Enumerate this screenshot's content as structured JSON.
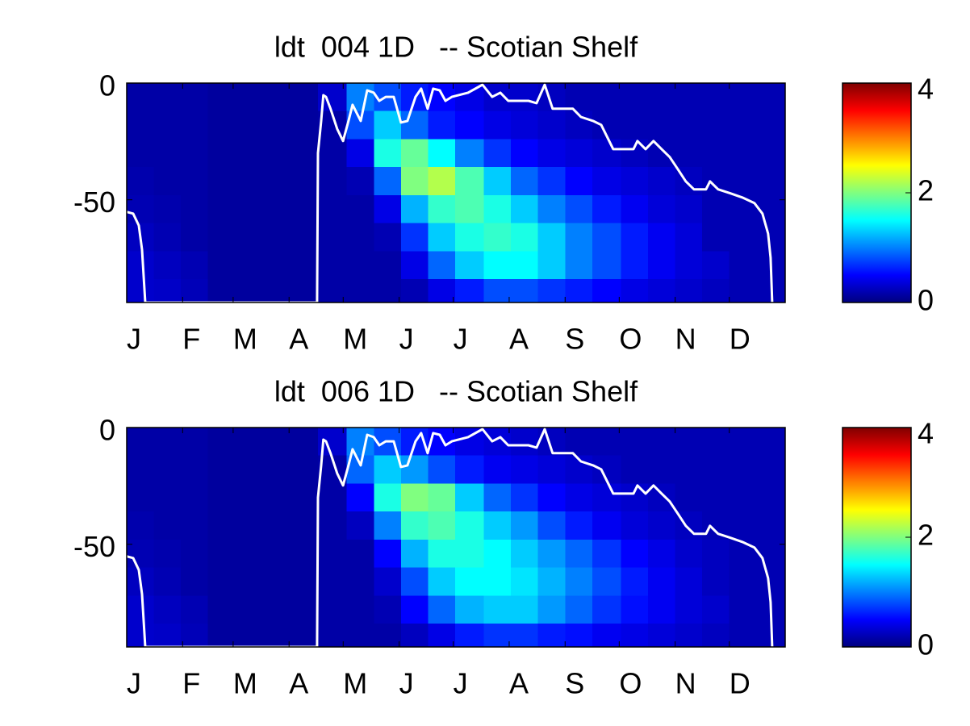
{
  "chart_data": [
    {
      "type": "heatmap",
      "title": "ldt  004 1D   -- Scotian Shelf",
      "colormap": "jet",
      "xlim": [
        0,
        365
      ],
      "ylim": [
        -94,
        0
      ],
      "zlim": [
        0,
        4
      ],
      "zticks": [
        0,
        2,
        4
      ],
      "yticks": [
        0,
        -50
      ],
      "xticks": [
        {
          "value": 0,
          "label": "J"
        },
        {
          "value": 31,
          "label": "F"
        },
        {
          "value": 59,
          "label": "M"
        },
        {
          "value": 90,
          "label": "A"
        },
        {
          "value": 120,
          "label": "M"
        },
        {
          "value": 151,
          "label": "J"
        },
        {
          "value": 181,
          "label": "J"
        },
        {
          "value": 212,
          "label": "A"
        },
        {
          "value": 243,
          "label": "S"
        },
        {
          "value": 273,
          "label": "O"
        },
        {
          "value": 304,
          "label": "N"
        },
        {
          "value": 334,
          "label": "D"
        }
      ],
      "x_edges": [
        0,
        15,
        30,
        45,
        61,
        76,
        91,
        106,
        122,
        137,
        152,
        167,
        182,
        198,
        213,
        228,
        243,
        258,
        274,
        289,
        304,
        319,
        334,
        350,
        365
      ],
      "y_edges": [
        0,
        -12,
        -24,
        -36,
        -48,
        -60,
        -72,
        -84,
        -94
      ],
      "z": [
        [
          0.15,
          0.15,
          0.15,
          0.12,
          0.12,
          0.12,
          0.12,
          0.3,
          1.0,
          0.8,
          0.6,
          0.5,
          0.4,
          0.3,
          0.3,
          0.25,
          0.2,
          0.2,
          0.2,
          0.2,
          0.2,
          0.2,
          0.2,
          0.2
        ],
        [
          0.15,
          0.15,
          0.15,
          0.12,
          0.12,
          0.12,
          0.12,
          0.15,
          0.8,
          1.3,
          0.9,
          0.6,
          0.5,
          0.4,
          0.35,
          0.3,
          0.25,
          0.2,
          0.2,
          0.2,
          0.2,
          0.2,
          0.2,
          0.2
        ],
        [
          0.15,
          0.15,
          0.15,
          0.12,
          0.12,
          0.12,
          0.12,
          0.15,
          0.4,
          1.6,
          1.9,
          1.5,
          1.0,
          0.7,
          0.5,
          0.4,
          0.35,
          0.3,
          0.25,
          0.2,
          0.2,
          0.2,
          0.2,
          0.2
        ],
        [
          0.18,
          0.15,
          0.15,
          0.12,
          0.12,
          0.12,
          0.12,
          0.15,
          0.2,
          0.9,
          2.0,
          2.2,
          1.8,
          1.3,
          0.9,
          0.7,
          0.5,
          0.4,
          0.35,
          0.3,
          0.25,
          0.2,
          0.2,
          0.2
        ],
        [
          0.2,
          0.18,
          0.15,
          0.12,
          0.12,
          0.12,
          0.12,
          0.15,
          0.15,
          0.4,
          1.2,
          1.7,
          1.8,
          1.6,
          1.3,
          1.0,
          0.8,
          0.6,
          0.45,
          0.35,
          0.3,
          0.2,
          0.2,
          0.2
        ],
        [
          0.25,
          0.2,
          0.15,
          0.12,
          0.12,
          0.12,
          0.12,
          0.15,
          0.15,
          0.2,
          0.7,
          1.3,
          1.6,
          1.7,
          1.6,
          1.3,
          1.0,
          0.8,
          0.6,
          0.45,
          0.35,
          0.2,
          0.2,
          0.2
        ],
        [
          0.3,
          0.25,
          0.2,
          0.12,
          0.12,
          0.12,
          0.12,
          0.15,
          0.15,
          0.15,
          0.4,
          0.9,
          1.3,
          1.5,
          1.5,
          1.3,
          1.0,
          0.8,
          0.6,
          0.45,
          0.35,
          0.3,
          0.2,
          0.2
        ],
        [
          0.3,
          0.28,
          0.22,
          0.12,
          0.12,
          0.12,
          0.12,
          0.15,
          0.15,
          0.15,
          0.2,
          0.4,
          0.6,
          0.8,
          0.8,
          0.7,
          0.6,
          0.5,
          0.4,
          0.35,
          0.3,
          0.25,
          0.2,
          0.2
        ]
      ],
      "series": [
        {
          "color": "#ffffff",
          "x": [
            0,
            3.6,
            6.7,
            8.5,
            10.3,
            105.5,
            106,
            107.8,
            109,
            110.5,
            113,
            116.7,
            119.9,
            123,
            125.2,
            129.7,
            133.3,
            136.9,
            140,
            143.6,
            148,
            152,
            155.6,
            160.1,
            163.2,
            166.8,
            169.9,
            173.5,
            176.7,
            180.2,
            189.2,
            197.2,
            202.6,
            207.1,
            211.5,
            222.7,
            227.2,
            231.7,
            236.1,
            247.3,
            251.8,
            258.5,
            263,
            269.7,
            280.9,
            283.1,
            287.6,
            292,
            296.5,
            301,
            305.5,
            309.9,
            314.4,
            321.1,
            323.3,
            327.8,
            334.5,
            341.2,
            347.9,
            352.4,
            355.5,
            356.9,
            357.8
          ],
          "values": [
            -55.2,
            -55.9,
            -61,
            -71.4,
            -94,
            -94,
            -30,
            -16.2,
            -5.2,
            -5.9,
            -11,
            -19.7,
            -24.8,
            -16,
            -9.3,
            -16.2,
            -3.1,
            -4.1,
            -7.6,
            -5.9,
            -5.9,
            -16.9,
            -16.2,
            -5.9,
            -2.4,
            -11,
            -2.4,
            -3.1,
            -7.6,
            -5.9,
            -4.1,
            -0.7,
            -5.9,
            -4.1,
            -7.6,
            -7.6,
            -8.6,
            -0.7,
            -11,
            -11,
            -14.5,
            -16.2,
            -17.9,
            -28.3,
            -28.3,
            -24.8,
            -28.3,
            -24.8,
            -28.3,
            -31.7,
            -36.9,
            -42.1,
            -45.5,
            -45.5,
            -42.1,
            -45.5,
            -47.2,
            -49,
            -51.4,
            -55.9,
            -64.5,
            -74.8,
            -94
          ]
        }
      ]
    },
    {
      "type": "heatmap",
      "title": "ldt  006 1D   -- Scotian Shelf",
      "colormap": "jet",
      "xlim": [
        0,
        365
      ],
      "ylim": [
        -94,
        0
      ],
      "zlim": [
        0,
        4
      ],
      "zticks": [
        0,
        2,
        4
      ],
      "yticks": [
        0,
        -50
      ],
      "xticks": [
        {
          "value": 0,
          "label": "J"
        },
        {
          "value": 31,
          "label": "F"
        },
        {
          "value": 59,
          "label": "M"
        },
        {
          "value": 90,
          "label": "A"
        },
        {
          "value": 120,
          "label": "M"
        },
        {
          "value": 151,
          "label": "J"
        },
        {
          "value": 181,
          "label": "J"
        },
        {
          "value": 212,
          "label": "A"
        },
        {
          "value": 243,
          "label": "S"
        },
        {
          "value": 273,
          "label": "O"
        },
        {
          "value": 304,
          "label": "N"
        },
        {
          "value": 334,
          "label": "D"
        }
      ],
      "x_edges": [
        0,
        15,
        30,
        45,
        61,
        76,
        91,
        106,
        122,
        137,
        152,
        167,
        182,
        198,
        213,
        228,
        243,
        258,
        274,
        289,
        304,
        319,
        334,
        350,
        365
      ],
      "y_edges": [
        0,
        -12,
        -24,
        -36,
        -48,
        -60,
        -72,
        -84,
        -94
      ],
      "z": [
        [
          0.15,
          0.15,
          0.15,
          0.12,
          0.12,
          0.12,
          0.12,
          0.3,
          1.0,
          0.8,
          0.6,
          0.5,
          0.4,
          0.35,
          0.3,
          0.25,
          0.2,
          0.2,
          0.2,
          0.2,
          0.2,
          0.2,
          0.2,
          0.2
        ],
        [
          0.15,
          0.15,
          0.15,
          0.12,
          0.12,
          0.12,
          0.12,
          0.15,
          0.9,
          1.3,
          1.1,
          0.8,
          0.6,
          0.45,
          0.4,
          0.35,
          0.3,
          0.25,
          0.2,
          0.2,
          0.2,
          0.2,
          0.2,
          0.2
        ],
        [
          0.15,
          0.15,
          0.15,
          0.12,
          0.12,
          0.12,
          0.12,
          0.15,
          0.5,
          1.6,
          2.0,
          1.9,
          1.3,
          0.9,
          0.7,
          0.5,
          0.4,
          0.35,
          0.3,
          0.25,
          0.2,
          0.2,
          0.2,
          0.2
        ],
        [
          0.18,
          0.15,
          0.15,
          0.12,
          0.12,
          0.12,
          0.12,
          0.15,
          0.25,
          1.0,
          1.7,
          1.8,
          1.6,
          1.3,
          1.1,
          0.8,
          0.6,
          0.45,
          0.35,
          0.3,
          0.25,
          0.2,
          0.2,
          0.2
        ],
        [
          0.2,
          0.18,
          0.15,
          0.12,
          0.12,
          0.12,
          0.12,
          0.15,
          0.15,
          0.5,
          1.2,
          1.6,
          1.6,
          1.5,
          1.3,
          1.1,
          0.9,
          0.7,
          0.5,
          0.4,
          0.3,
          0.25,
          0.2,
          0.2
        ],
        [
          0.25,
          0.2,
          0.15,
          0.12,
          0.12,
          0.12,
          0.12,
          0.15,
          0.15,
          0.3,
          0.8,
          1.3,
          1.5,
          1.5,
          1.4,
          1.2,
          1.0,
          0.8,
          0.6,
          0.45,
          0.35,
          0.25,
          0.2,
          0.2
        ],
        [
          0.3,
          0.25,
          0.2,
          0.12,
          0.12,
          0.12,
          0.12,
          0.15,
          0.15,
          0.2,
          0.5,
          0.9,
          1.2,
          1.3,
          1.3,
          1.1,
          0.9,
          0.7,
          0.55,
          0.45,
          0.35,
          0.3,
          0.2,
          0.2
        ],
        [
          0.3,
          0.28,
          0.22,
          0.12,
          0.12,
          0.12,
          0.12,
          0.15,
          0.15,
          0.15,
          0.25,
          0.4,
          0.6,
          0.7,
          0.7,
          0.6,
          0.55,
          0.45,
          0.4,
          0.35,
          0.3,
          0.25,
          0.2,
          0.2
        ]
      ],
      "series": [
        {
          "color": "#ffffff",
          "x": [
            0,
            3.6,
            6.7,
            8.5,
            10.3,
            105.5,
            106,
            107.8,
            109,
            110.5,
            113,
            116.7,
            119.9,
            123,
            125.2,
            129.7,
            133.3,
            136.9,
            140,
            143.6,
            148,
            152,
            155.6,
            160.1,
            163.2,
            166.8,
            169.9,
            173.5,
            176.7,
            180.2,
            189.2,
            197.2,
            202.6,
            207.1,
            211.5,
            222.7,
            227.2,
            231.7,
            236.1,
            247.3,
            251.8,
            258.5,
            263,
            269.7,
            280.9,
            283.1,
            287.6,
            292,
            296.5,
            301,
            305.5,
            309.9,
            314.4,
            321.1,
            323.3,
            327.8,
            334.5,
            341.2,
            347.9,
            352.4,
            355.5,
            356.9,
            357.8
          ],
          "values": [
            -55.2,
            -55.9,
            -61,
            -71.4,
            -94,
            -94,
            -30,
            -16.2,
            -5.2,
            -5.9,
            -11,
            -19.7,
            -24.8,
            -16,
            -9.3,
            -16.2,
            -3.1,
            -4.1,
            -7.6,
            -5.9,
            -5.9,
            -16.9,
            -16.2,
            -5.9,
            -2.4,
            -11,
            -2.4,
            -3.1,
            -7.6,
            -5.9,
            -4.1,
            -0.7,
            -5.9,
            -4.1,
            -7.6,
            -7.6,
            -8.6,
            -0.7,
            -11,
            -11,
            -14.5,
            -16.2,
            -17.9,
            -28.3,
            -28.3,
            -24.8,
            -28.3,
            -24.8,
            -28.3,
            -31.7,
            -36.9,
            -42.1,
            -45.5,
            -45.5,
            -42.1,
            -45.5,
            -47.2,
            -49,
            -51.4,
            -55.9,
            -64.5,
            -74.8,
            -94
          ]
        }
      ]
    }
  ]
}
